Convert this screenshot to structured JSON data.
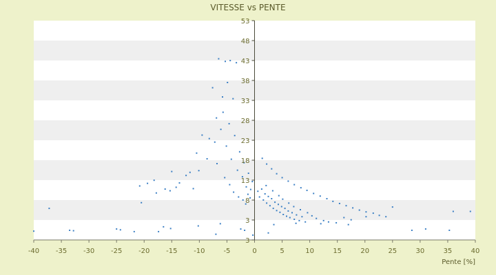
{
  "chart_data": {
    "type": "scatter",
    "title": "VITESSE vs PENTE",
    "xlabel": "Pente [%]",
    "ylabel": "",
    "xlim": [
      -40,
      40
    ],
    "ylim": [
      3,
      53
    ],
    "x_ticks": [
      "-40",
      "-35",
      "-30",
      "-25",
      "-20",
      "-15",
      "-10",
      "-5",
      "0",
      "5",
      "10",
      "15",
      "20",
      "25",
      "30",
      "35",
      "40"
    ],
    "y_ticks": [
      "53",
      "48",
      "43",
      "38",
      "33",
      "28",
      "23",
      "18",
      "13",
      "8",
      "3",
      "3"
    ],
    "grid": "horizontal bands",
    "legend": "none",
    "point_color": "#3b7fc4",
    "band_colors": [
      "#ffffff",
      "#efefef"
    ],
    "series": [
      {
        "points": [
          [
            -40,
            5
          ],
          [
            -37.2,
            10.2
          ],
          [
            -33.5,
            5.2
          ],
          [
            -32.8,
            5.1
          ],
          [
            -25,
            5.5
          ],
          [
            -24.3,
            5.3
          ],
          [
            -21.8,
            4.9
          ],
          [
            -20.5,
            11.5
          ],
          [
            -17.4,
            4.9
          ],
          [
            -16.5,
            6
          ],
          [
            -15.2,
            5.6
          ],
          [
            -10.2,
            6.2
          ],
          [
            -7,
            4.3
          ],
          [
            -6.2,
            6.7
          ],
          [
            -2.5,
            5.5
          ],
          [
            -1.8,
            5.2
          ],
          [
            -0.3,
            4.1
          ],
          [
            2.5,
            4.6
          ],
          [
            3.5,
            6.5
          ],
          [
            7.5,
            6.8
          ],
          [
            12,
            6.7
          ],
          [
            17,
            6.5
          ],
          [
            20.2,
            8.3
          ],
          [
            25,
            10.5
          ],
          [
            28.5,
            5.2
          ],
          [
            31,
            5.5
          ],
          [
            35.3,
            5.2
          ],
          [
            36,
            9.5
          ],
          [
            39.1,
            9.5
          ],
          [
            -20.8,
            15.3
          ],
          [
            -19.4,
            15.9
          ],
          [
            -18.2,
            16.6
          ],
          [
            -17.8,
            13.7
          ],
          [
            -16.2,
            14.6
          ],
          [
            -15.3,
            14.2
          ],
          [
            -15,
            18.6
          ],
          [
            -14.2,
            15
          ],
          [
            -13.6,
            16
          ],
          [
            -12.4,
            17.7
          ],
          [
            -11.7,
            18.4
          ],
          [
            -11.1,
            14.7
          ],
          [
            -10.5,
            22.8
          ],
          [
            -10.1,
            18.8
          ],
          [
            -9.5,
            26.9
          ],
          [
            -8.6,
            21.5
          ],
          [
            -8.2,
            26.1
          ],
          [
            -7.6,
            37.7
          ],
          [
            -6.9,
            30.8
          ],
          [
            -6.5,
            44.3
          ],
          [
            -5.8,
            35.6
          ],
          [
            -5.3,
            43.7
          ],
          [
            -4.9,
            38.9
          ],
          [
            -4.4,
            43.9
          ],
          [
            -3.9,
            35.2
          ],
          [
            -3.3,
            43.4
          ],
          [
            -7.2,
            25.3
          ],
          [
            -6.8,
            20.4
          ],
          [
            -6.1,
            28.2
          ],
          [
            -5.7,
            32.1
          ],
          [
            -5.1,
            24.4
          ],
          [
            -4.6,
            29.5
          ],
          [
            -4.2,
            21.4
          ],
          [
            -3.6,
            26.8
          ],
          [
            -3.1,
            18.9
          ],
          [
            -2.7,
            23.1
          ],
          [
            -2.2,
            17.4
          ],
          [
            -1.9,
            20.6
          ],
          [
            -1.5,
            15.1
          ],
          [
            -1.1,
            18.2
          ],
          [
            -0.7,
            14.5
          ],
          [
            -0.4,
            16.3
          ],
          [
            -5.4,
            17.2
          ],
          [
            -4.5,
            15.6
          ],
          [
            -3.8,
            13.9
          ],
          [
            -2.9,
            12.8
          ],
          [
            -2.1,
            12.1
          ],
          [
            -1.6,
            11.2
          ],
          [
            -1.2,
            13.4
          ],
          [
            -0.8,
            12.6
          ],
          [
            0.6,
            14.1
          ],
          [
            0.9,
            12.8
          ],
          [
            1.3,
            14.6
          ],
          [
            1.6,
            12.1
          ],
          [
            1.9,
            13.5
          ],
          [
            2.2,
            11.4
          ],
          [
            2.5,
            12.9
          ],
          [
            2.8,
            10.8
          ],
          [
            3.1,
            12.4
          ],
          [
            3.4,
            10.2
          ],
          [
            3.7,
            11.6
          ],
          [
            4,
            9.7
          ],
          [
            4.3,
            11.1
          ],
          [
            4.6,
            9.3
          ],
          [
            4.9,
            10.6
          ],
          [
            5.2,
            8.8
          ],
          [
            5.5,
            10.2
          ],
          [
            5.8,
            8.4
          ],
          [
            6.1,
            9.6
          ],
          [
            6.4,
            8.1
          ],
          [
            6.8,
            9.2
          ],
          [
            7.2,
            7.7
          ],
          [
            7.6,
            8.7
          ],
          [
            8.1,
            7.4
          ],
          [
            8.6,
            8.3
          ],
          [
            9.2,
            7.1
          ],
          [
            2.1,
            15.4
          ],
          [
            3.3,
            14.2
          ],
          [
            4.4,
            13.1
          ],
          [
            5.1,
            12.3
          ],
          [
            6.2,
            11.4
          ],
          [
            7.1,
            10.6
          ],
          [
            8.3,
            9.9
          ],
          [
            9.6,
            9.2
          ],
          [
            10.4,
            8.5
          ],
          [
            11.2,
            7.9
          ],
          [
            12.5,
            7.4
          ],
          [
            13.4,
            7.1
          ],
          [
            14.8,
            6.9
          ],
          [
            16.2,
            8.1
          ],
          [
            17.5,
            7.6
          ],
          [
            1.4,
            21.6
          ],
          [
            2.2,
            20.3
          ],
          [
            3.1,
            19.2
          ],
          [
            4,
            18.1
          ],
          [
            5,
            17.2
          ],
          [
            6.1,
            16.4
          ],
          [
            7.2,
            15.6
          ],
          [
            8.4,
            14.9
          ],
          [
            9.5,
            14.3
          ],
          [
            10.7,
            13.6
          ],
          [
            11.9,
            13
          ],
          [
            13.1,
            12.4
          ],
          [
            14.2,
            11.8
          ],
          [
            15.4,
            11.3
          ],
          [
            16.6,
            10.8
          ],
          [
            17.8,
            10.3
          ],
          [
            19,
            9.8
          ],
          [
            20.2,
            9.4
          ],
          [
            21.5,
            9.1
          ],
          [
            22.6,
            8.6
          ],
          [
            23.8,
            8.3
          ]
        ]
      }
    ]
  }
}
